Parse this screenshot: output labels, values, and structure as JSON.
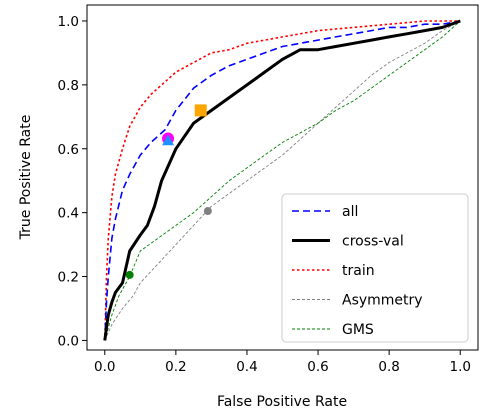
{
  "chart_data": {
    "type": "line",
    "xlabel": "False Positive Rate",
    "ylabel": "True Positive Rate",
    "xlim": [
      -0.05,
      1.05
    ],
    "ylim": [
      -0.03,
      1.05
    ],
    "xticks": [
      0.0,
      0.2,
      0.4,
      0.6,
      0.8,
      1.0
    ],
    "yticks": [
      0.0,
      0.2,
      0.4,
      0.6,
      0.8,
      1.0
    ],
    "tick_labels": [
      "0.0",
      "0.2",
      "0.4",
      "0.6",
      "0.8",
      "1.0"
    ],
    "grid": false,
    "legend_position": "lower-right",
    "series": [
      {
        "name": "all",
        "color": "#0000ff",
        "style": "dashed",
        "x": [
          0,
          0.005,
          0.01,
          0.02,
          0.03,
          0.05,
          0.07,
          0.1,
          0.13,
          0.17,
          0.2,
          0.25,
          0.3,
          0.35,
          0.4,
          0.45,
          0.5,
          0.55,
          0.6,
          0.65,
          0.7,
          0.75,
          0.8,
          0.85,
          0.9,
          0.95,
          1.0
        ],
        "y": [
          0,
          0.12,
          0.2,
          0.32,
          0.38,
          0.47,
          0.52,
          0.58,
          0.62,
          0.66,
          0.72,
          0.79,
          0.83,
          0.86,
          0.88,
          0.9,
          0.92,
          0.93,
          0.94,
          0.95,
          0.96,
          0.97,
          0.98,
          0.98,
          0.99,
          0.99,
          1.0
        ]
      },
      {
        "name": "cross-val",
        "color": "#000000",
        "style": "solid",
        "x": [
          0,
          0.005,
          0.01,
          0.02,
          0.03,
          0.05,
          0.07,
          0.1,
          0.12,
          0.14,
          0.16,
          0.2,
          0.25,
          0.3,
          0.35,
          0.4,
          0.45,
          0.5,
          0.55,
          0.6,
          0.65,
          0.7,
          0.75,
          0.8,
          0.85,
          0.9,
          0.95,
          1.0
        ],
        "y": [
          0,
          0.04,
          0.08,
          0.12,
          0.15,
          0.18,
          0.28,
          0.33,
          0.36,
          0.42,
          0.5,
          0.6,
          0.68,
          0.72,
          0.76,
          0.8,
          0.84,
          0.88,
          0.91,
          0.91,
          0.92,
          0.93,
          0.94,
          0.95,
          0.96,
          0.97,
          0.98,
          1.0
        ]
      },
      {
        "name": "train",
        "color": "#ff0000",
        "style": "dotted",
        "x": [
          0,
          0.005,
          0.01,
          0.02,
          0.03,
          0.05,
          0.07,
          0.1,
          0.13,
          0.17,
          0.2,
          0.25,
          0.3,
          0.35,
          0.4,
          0.45,
          0.5,
          0.55,
          0.6,
          0.65,
          0.7,
          0.75,
          0.8,
          0.85,
          0.9,
          0.95,
          1.0
        ],
        "y": [
          0,
          0.2,
          0.32,
          0.45,
          0.52,
          0.6,
          0.67,
          0.73,
          0.77,
          0.81,
          0.84,
          0.87,
          0.9,
          0.91,
          0.93,
          0.94,
          0.95,
          0.96,
          0.97,
          0.975,
          0.98,
          0.985,
          0.99,
          0.995,
          1.0,
          1.0,
          1.0
        ]
      },
      {
        "name": "Asymmetry",
        "color": "#808080",
        "style": "dashed-thin",
        "x": [
          0,
          0.02,
          0.05,
          0.08,
          0.1,
          0.15,
          0.2,
          0.25,
          0.3,
          0.35,
          0.4,
          0.45,
          0.5,
          0.55,
          0.6,
          0.65,
          0.7,
          0.75,
          0.8,
          0.85,
          0.9,
          0.95,
          1.0
        ],
        "y": [
          0,
          0.05,
          0.1,
          0.14,
          0.18,
          0.24,
          0.3,
          0.36,
          0.42,
          0.46,
          0.5,
          0.54,
          0.58,
          0.63,
          0.68,
          0.73,
          0.78,
          0.83,
          0.87,
          0.9,
          0.93,
          0.97,
          1.0
        ]
      },
      {
        "name": "GMS",
        "color": "#008000",
        "style": "dashed-thin",
        "x": [
          0,
          0.02,
          0.04,
          0.06,
          0.07,
          0.1,
          0.15,
          0.2,
          0.25,
          0.3,
          0.35,
          0.4,
          0.45,
          0.5,
          0.55,
          0.6,
          0.65,
          0.7,
          0.75,
          0.8,
          0.85,
          0.9,
          0.95,
          1.0
        ],
        "y": [
          0,
          0.08,
          0.14,
          0.18,
          0.2,
          0.28,
          0.32,
          0.36,
          0.4,
          0.45,
          0.5,
          0.54,
          0.58,
          0.62,
          0.65,
          0.68,
          0.72,
          0.75,
          0.79,
          0.83,
          0.87,
          0.91,
          0.95,
          1.0
        ]
      }
    ],
    "markers": [
      {
        "x": 0.178,
        "y": 0.632,
        "shape": "circle",
        "color": "#ff00ff",
        "size": "large"
      },
      {
        "x": 0.178,
        "y": 0.626,
        "shape": "triangle",
        "color": "#1e90ff",
        "size": "large"
      },
      {
        "x": 0.27,
        "y": 0.72,
        "shape": "square",
        "color": "#ffa500",
        "size": "large"
      },
      {
        "x": 0.29,
        "y": 0.405,
        "shape": "circle",
        "color": "#808080",
        "size": "small"
      },
      {
        "x": 0.07,
        "y": 0.205,
        "shape": "circle",
        "color": "#008000",
        "size": "small"
      }
    ]
  }
}
